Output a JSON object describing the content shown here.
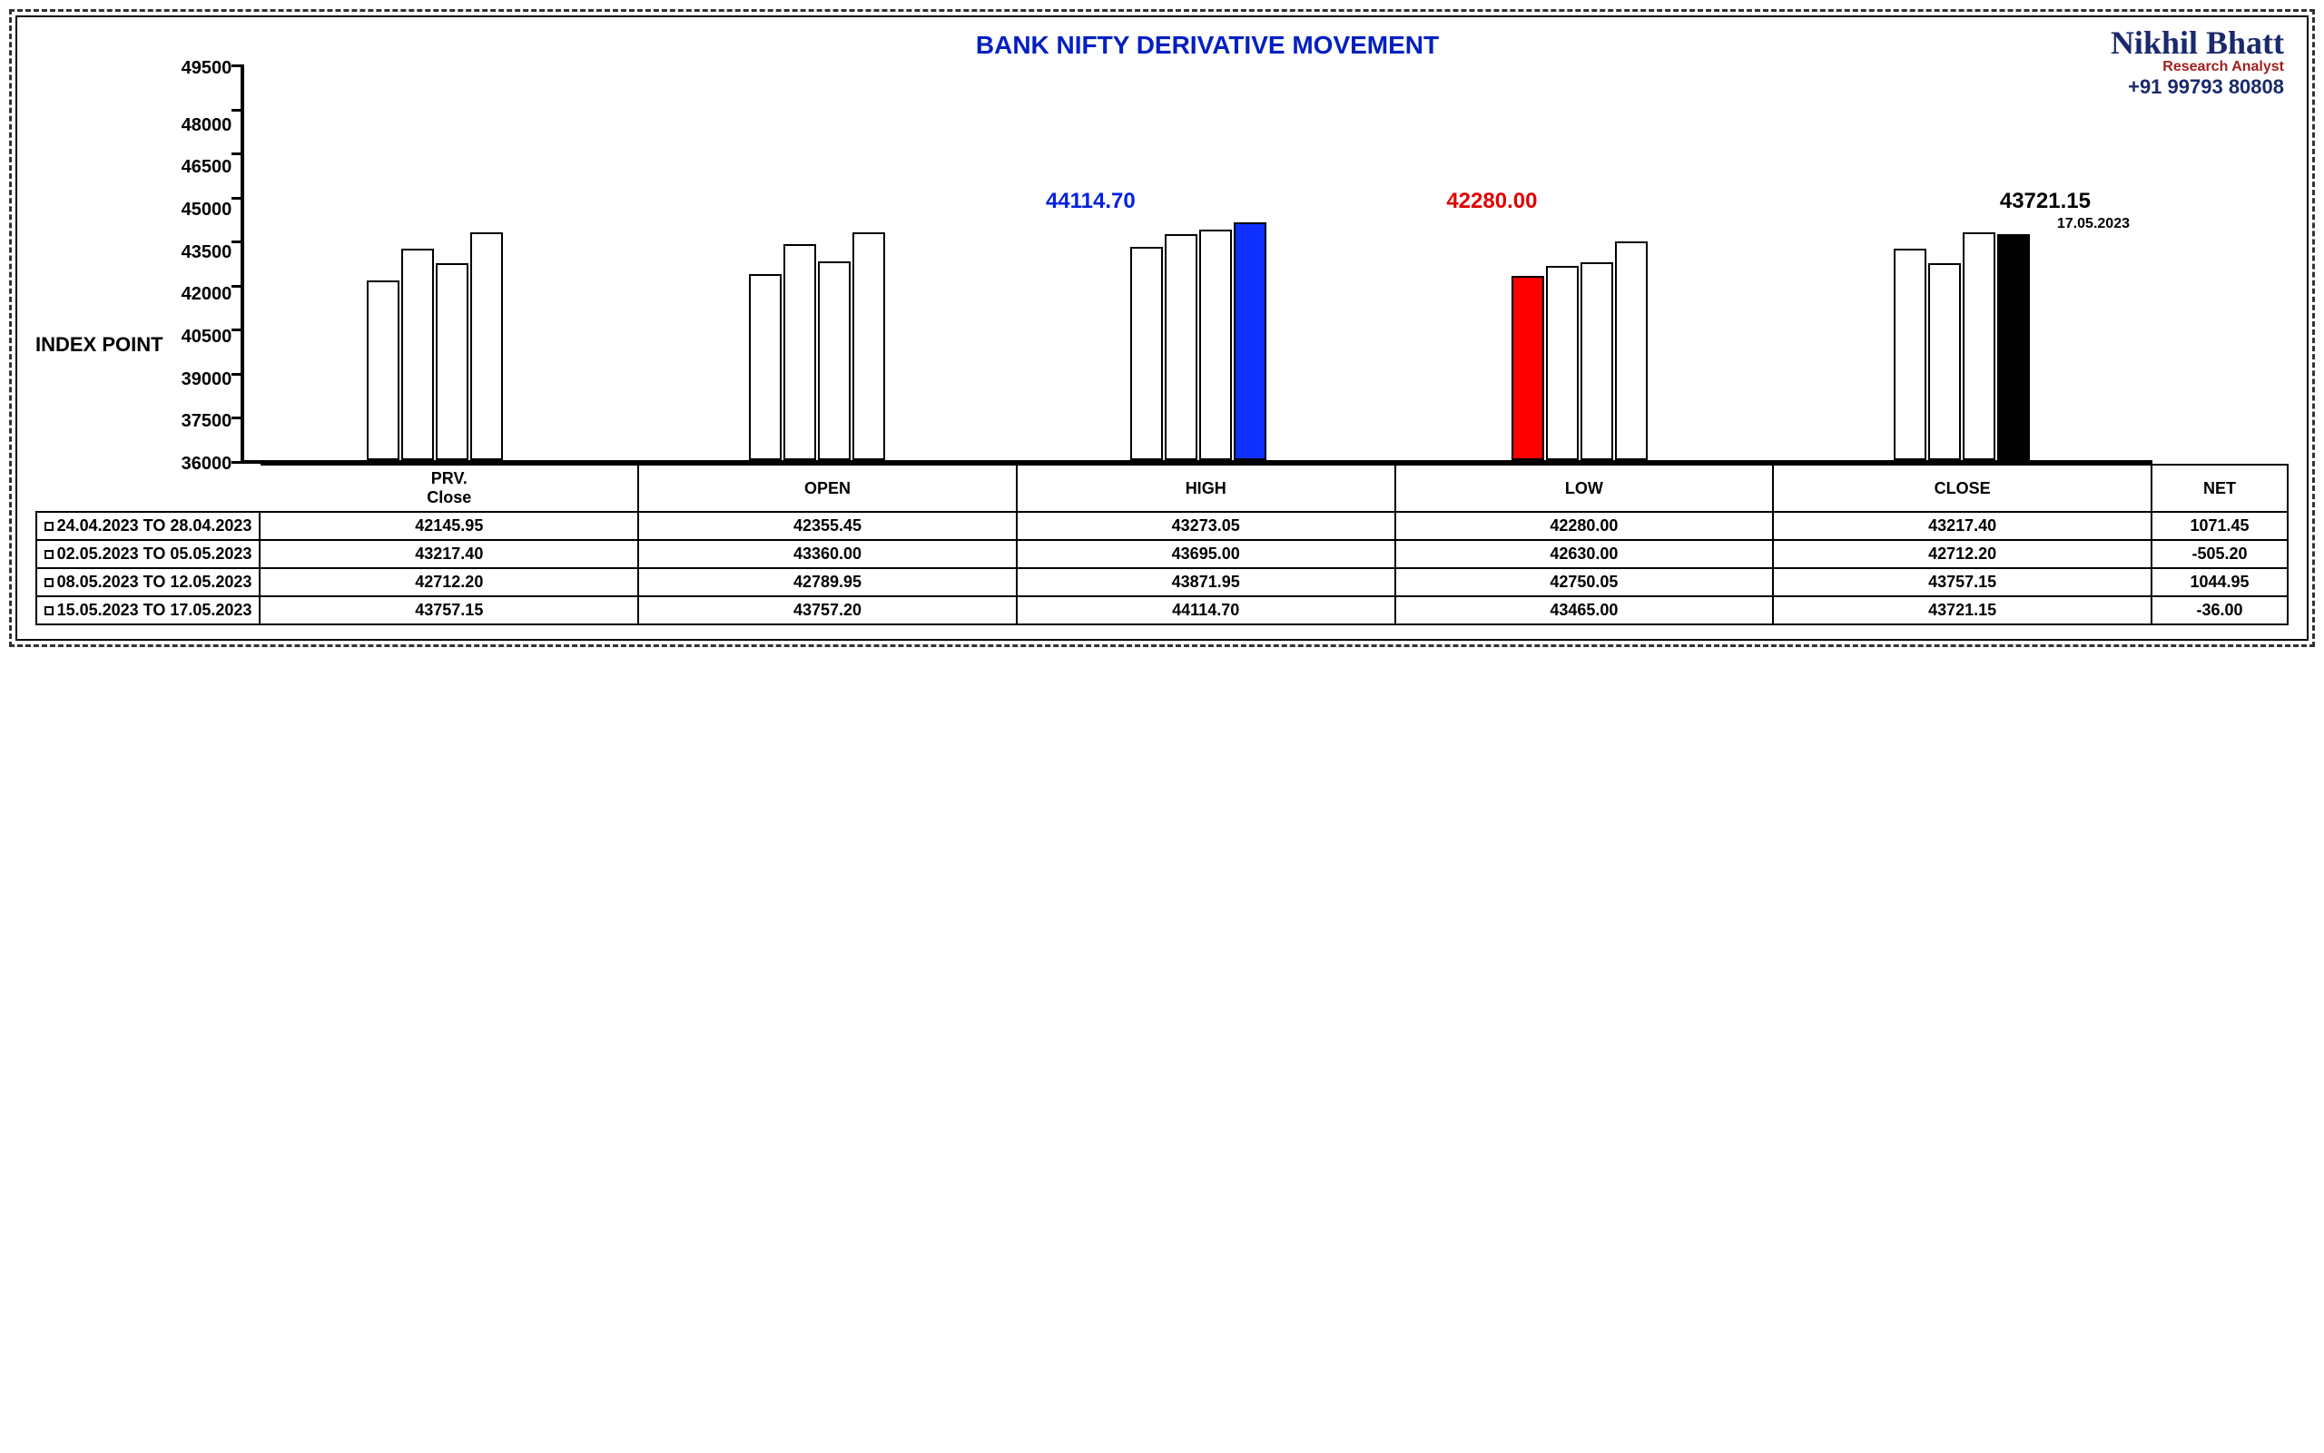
{
  "title": "BANK NIFTY DERIVATIVE MOVEMENT",
  "branding": {
    "name": "Nikhil Bhatt",
    "subtitle": "Research Analyst",
    "phone": "+91 99793 80808"
  },
  "y_axis": {
    "label": "INDEX POINT",
    "min": 36000,
    "max": 49500,
    "ticks": [
      49500,
      48000,
      46500,
      45000,
      43500,
      42000,
      40500,
      39000,
      37500,
      36000
    ],
    "tick_fontsize": 20,
    "tick_fontweight": "bold"
  },
  "groups": [
    "PRV. Close",
    "OPEN",
    "HIGH",
    "LOW",
    "CLOSE"
  ],
  "extra_col": "NET",
  "periods": [
    {
      "label": "24.04.2023 TO 28.04.2023",
      "prv": 42145.95,
      "open": 42355.45,
      "high": 43273.05,
      "low": 42280.0,
      "close": 43217.4,
      "net": 1071.45
    },
    {
      "label": "02.05.2023 TO 05.05.2023",
      "prv": 43217.4,
      "open": 43360.0,
      "high": 43695.0,
      "low": 42630.0,
      "close": 42712.2,
      "net": -505.2
    },
    {
      "label": "08.05.2023 TO 12.05.2023",
      "prv": 42712.2,
      "open": 42789.95,
      "high": 43871.95,
      "low": 42750.05,
      "close": 43757.15,
      "net": 1044.95
    },
    {
      "label": "15.05.2023 TO 17.05.2023",
      "prv": 43757.15,
      "open": 43757.2,
      "high": 44114.7,
      "low": 43465.0,
      "close": 43721.15,
      "net": -36.0
    }
  ],
  "highlights": {
    "high": {
      "value": "44114.70",
      "color": "#0020e0",
      "group": "HIGH",
      "bar_index": 3,
      "bar_color": "#1030ff"
    },
    "low": {
      "value": "42280.00",
      "color": "#e00000",
      "group": "LOW",
      "bar_index": 0,
      "bar_color": "#ff0000"
    },
    "close": {
      "value": "43721.15",
      "date": "17.05.2023",
      "color": "#000000",
      "group": "CLOSE",
      "bar_index": 3,
      "bar_color": "#000000"
    }
  },
  "styling": {
    "title_color": "#0020c0",
    "title_fontsize": 28,
    "bar_border": "#000000",
    "bar_fill_default": "#ffffff",
    "axis_color": "#000000",
    "background": "#ffffff",
    "outer_border": "dashed #333333",
    "table_border": "#000000",
    "font_family": "Arial"
  }
}
